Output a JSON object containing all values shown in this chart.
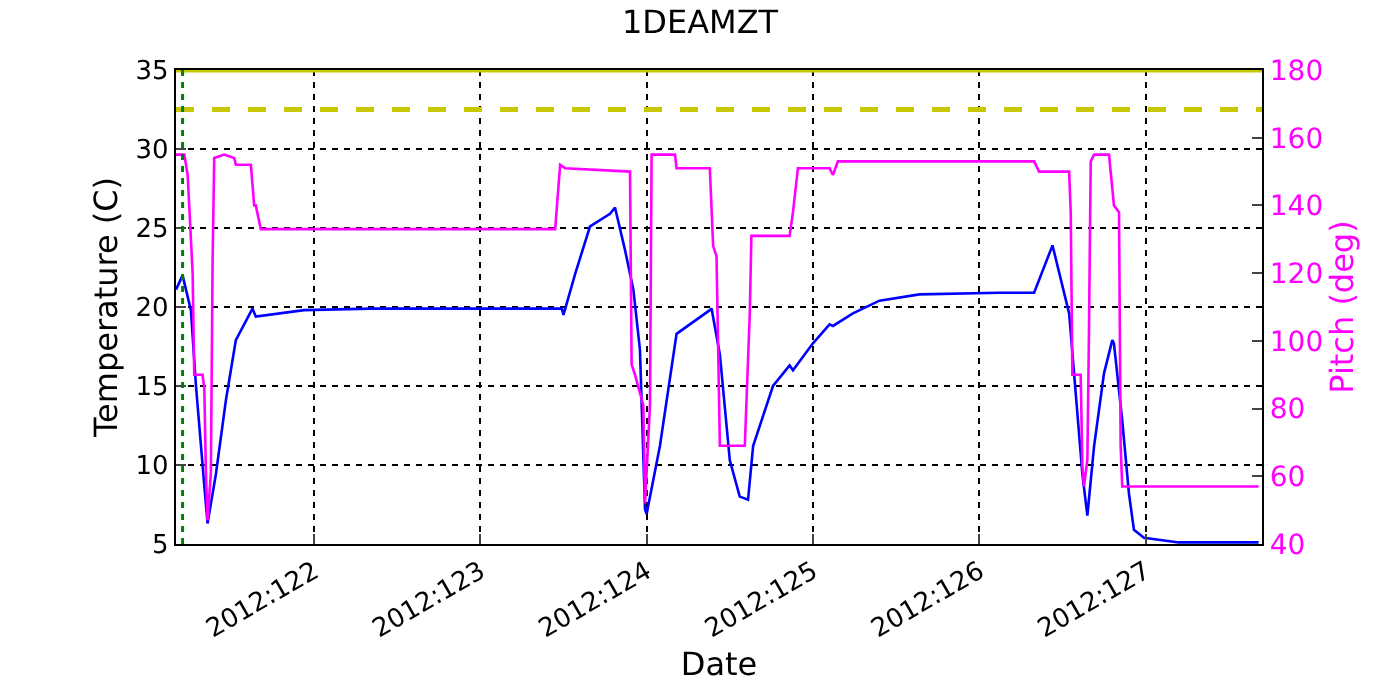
{
  "chart_data": {
    "type": "line",
    "title": "1DEAMZT",
    "xlabel": "Date",
    "ylabel": "Temperature (C)",
    "y2label": "Pitch (deg)",
    "xlim": [
      "2012-04-30T04:05",
      "2012-05-06T16:48"
    ],
    "xticks": [
      {
        "value": "2012-05-01",
        "label": "2012:122"
      },
      {
        "value": "2012-05-02",
        "label": "2012:123"
      },
      {
        "value": "2012-05-03",
        "label": "2012:124"
      },
      {
        "value": "2012-05-04",
        "label": "2012:125"
      },
      {
        "value": "2012-05-05",
        "label": "2012:126"
      },
      {
        "value": "2012-05-06",
        "label": "2012:127"
      }
    ],
    "ylim": [
      5,
      35
    ],
    "yticks": [
      5,
      10,
      15,
      20,
      25,
      30,
      35
    ],
    "y2lim": [
      40,
      180
    ],
    "y2ticks": [
      40,
      60,
      80,
      100,
      120,
      140,
      160,
      180
    ],
    "grid": true,
    "line_style": "solid",
    "series": [
      {
        "color": "#0000ff",
        "axis": "y",
        "x": [
          "2012-04-30T04:05",
          "2012-04-30T05:02",
          "2012-04-30T06:14",
          "2012-04-30T06:58",
          "2012-04-30T08:10",
          "2012-04-30T08:38",
          "2012-04-30T09:50",
          "2012-04-30T11:17",
          "2012-04-30T12:43",
          "2012-04-30T15:07",
          "2012-04-30T15:36",
          "2012-04-30T22:34",
          "2012-05-01T08:10",
          "2012-05-02T11:46",
          "2012-05-02T12:00",
          "2012-05-02T13:41",
          "2012-05-02T15:50",
          "2012-05-02T18:43",
          "2012-05-02T19:26",
          "2012-05-02T20:53",
          "2012-05-02T22:05",
          "2012-05-02T23:02",
          "2012-05-02T23:46",
          "2012-05-03T00:00",
          "2012-05-03T01:55",
          "2012-05-03T04:19",
          "2012-05-03T09:07",
          "2012-05-03T09:22",
          "2012-05-03T10:34",
          "2012-05-03T12:00",
          "2012-05-03T13:26",
          "2012-05-03T14:38",
          "2012-05-03T15:22",
          "2012-05-03T18:14",
          "2012-05-03T20:38",
          "2012-05-03T21:07",
          "2012-05-04T00:00",
          "2012-05-04T02:24",
          "2012-05-04T02:53",
          "2012-05-04T05:46",
          "2012-05-04T09:36",
          "2012-05-04T15:22",
          "2012-05-05T02:53",
          "2012-05-05T07:55",
          "2012-05-05T10:34",
          "2012-05-05T12:58",
          "2012-05-05T13:41",
          "2012-05-05T14:53",
          "2012-05-05T15:36",
          "2012-05-05T16:34",
          "2012-05-05T18:00",
          "2012-05-05T19:12",
          "2012-05-05T19:26",
          "2012-05-05T20:38",
          "2012-05-05T21:36",
          "2012-05-05T22:19",
          "2012-05-05T23:46",
          "2012-05-06T04:48",
          "2012-05-06T16:19"
        ],
        "values": [
          21.1,
          22.0,
          19.8,
          15.0,
          8.7,
          6.3,
          9.4,
          14.1,
          17.9,
          19.9,
          19.4,
          19.8,
          19.9,
          19.9,
          19.5,
          22.1,
          25.1,
          25.9,
          26.3,
          23.6,
          21.1,
          17.3,
          7.2,
          6.9,
          11.2,
          18.3,
          19.8,
          19.9,
          17.0,
          10.3,
          8.0,
          7.8,
          11.2,
          15.0,
          16.3,
          16.0,
          17.7,
          18.9,
          18.8,
          19.6,
          20.4,
          20.8,
          20.9,
          20.9,
          23.9,
          19.6,
          15.8,
          9.4,
          6.8,
          11.2,
          15.8,
          17.9,
          17.7,
          12.8,
          8.2,
          5.9,
          5.4,
          5.1,
          5.1
        ]
      },
      {
        "color": "#ff00ff",
        "axis": "y2",
        "x": [
          "2012-04-30T04:05",
          "2012-04-30T05:17",
          "2012-04-30T05:46",
          "2012-04-30T06:29",
          "2012-04-30T06:43",
          "2012-04-30T07:55",
          "2012-04-30T08:10",
          "2012-04-30T08:24",
          "2012-04-30T08:38",
          "2012-04-30T09:07",
          "2012-04-30T09:22",
          "2012-04-30T09:36",
          "2012-04-30T11:02",
          "2012-04-30T12:29",
          "2012-04-30T12:43",
          "2012-04-30T14:53",
          "2012-04-30T15:22",
          "2012-04-30T15:36",
          "2012-04-30T16:19",
          "2012-05-02T10:48",
          "2012-05-02T11:31",
          "2012-05-02T12:14",
          "2012-05-02T21:36",
          "2012-05-02T21:50",
          "2012-05-02T22:19",
          "2012-05-02T23:31",
          "2012-05-02T23:46",
          "2012-05-03T00:29",
          "2012-05-03T00:43",
          "2012-05-03T00:58",
          "2012-05-03T04:05",
          "2012-05-03T04:19",
          "2012-05-03T09:07",
          "2012-05-03T09:36",
          "2012-05-03T10:05",
          "2012-05-03T10:34",
          "2012-05-03T14:10",
          "2012-05-03T14:53",
          "2012-05-03T15:07",
          "2012-05-03T20:38",
          "2012-05-03T21:07",
          "2012-05-03T21:50",
          "2012-05-04T02:24",
          "2012-05-04T02:53",
          "2012-05-04T03:36",
          "2012-05-05T07:55",
          "2012-05-05T08:38",
          "2012-05-05T12:58",
          "2012-05-05T13:12",
          "2012-05-05T13:26",
          "2012-05-05T14:38",
          "2012-05-05T14:53",
          "2012-05-05T15:07",
          "2012-05-05T15:36",
          "2012-05-05T15:50",
          "2012-05-05T16:05",
          "2012-05-05T16:34",
          "2012-05-05T18:43",
          "2012-05-05T19:12",
          "2012-05-05T19:26",
          "2012-05-05T20:10",
          "2012-05-05T20:24",
          "2012-05-05T20:38",
          "2012-05-06T16:19"
        ],
        "values": [
          155,
          155,
          149,
          120,
          90,
          90,
          86,
          61,
          47,
          61,
          124,
          154,
          155,
          154,
          152,
          152,
          140,
          140,
          133,
          133,
          152,
          151,
          150,
          93,
          90,
          81,
          52,
          81,
          155,
          155,
          155,
          151,
          151,
          128,
          125,
          69,
          69,
          108,
          131,
          131,
          138,
          151,
          151,
          149,
          153,
          153,
          150,
          150,
          138,
          90,
          90,
          63,
          57,
          65,
          103,
          153,
          155,
          155,
          145,
          140,
          138,
          69,
          57,
          57
        ]
      }
    ],
    "ref_lines": [
      {
        "axis": "y",
        "value": 32.5,
        "color": "#c8c800",
        "line_style": "dashed"
      },
      {
        "axis": "y",
        "value": 35,
        "color": "#c8c800",
        "line_style": "solid"
      },
      {
        "axis": "x",
        "value": "2012-04-30T05:02",
        "color": "#008000",
        "line_style": "dotted"
      }
    ]
  }
}
